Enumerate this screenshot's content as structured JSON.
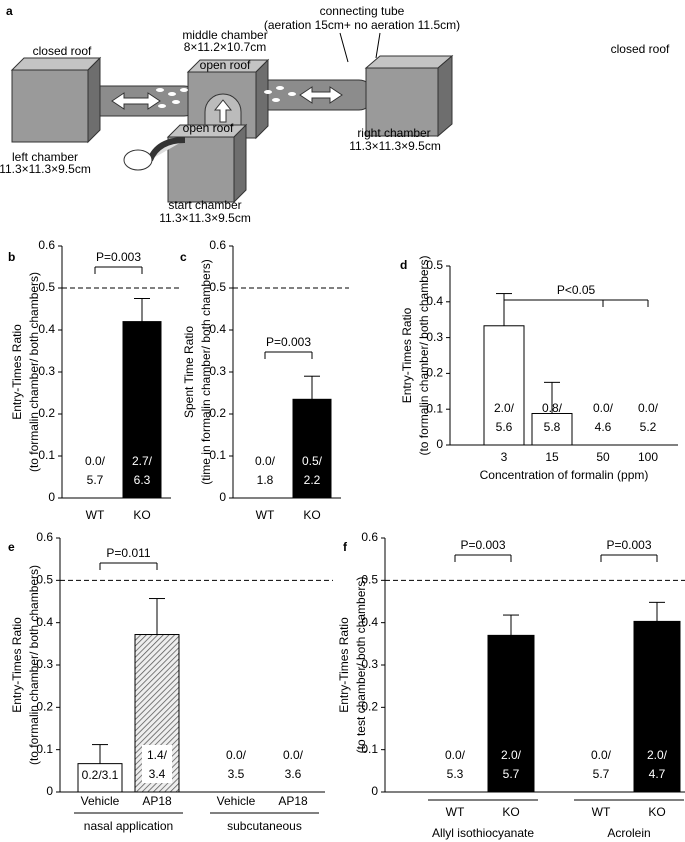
{
  "diagram": {
    "letter": "a",
    "labels": [
      "closed roof",
      "middle chamber",
      "8×11.2×10.7cm",
      "open roof",
      "connecting tube",
      "(aeration 15cm+ no aeration 11.5cm)",
      "closed roof",
      "left chamber",
      "11.3×11.3×9.5cm",
      "right chamber",
      "11.3×11.3×9.5cm",
      "open roof",
      "start chamber",
      "11.3×11.3×9.5cm"
    ]
  },
  "chart_data": [
    {
      "letter": "b",
      "type": "bar",
      "ylabel": "Entry-Times Ratio",
      "ylabel_sub": "(to formalin chamber/ both chambers)",
      "categories": [
        "WT",
        "KO"
      ],
      "values": [
        0,
        0.42
      ],
      "errors": [
        null,
        0.055
      ],
      "colors": [
        "#ffffff",
        "#000000"
      ],
      "annotations": [
        [
          "0.0/",
          "5.7"
        ],
        [
          "2.7/",
          "6.3"
        ]
      ],
      "reference_line": 0.5,
      "significance": [
        {
          "label": "P=0.003",
          "from": 0,
          "to": 1
        }
      ],
      "ylim": [
        0,
        0.6
      ],
      "yticks": [
        0,
        0.1,
        0.2,
        0.3,
        0.4,
        0.5,
        0.6
      ]
    },
    {
      "letter": "c",
      "type": "bar",
      "ylabel": "Spent Time Ratio",
      "ylabel_sub": "(time in formalin chamber/ both chambers)",
      "categories": [
        "WT",
        "KO"
      ],
      "values": [
        0,
        0.235
      ],
      "errors": [
        null,
        0.055
      ],
      "colors": [
        "#ffffff",
        "#000000"
      ],
      "annotations": [
        [
          "0.0/",
          "1.8"
        ],
        [
          "0.5/",
          "2.2"
        ]
      ],
      "reference_line": 0.5,
      "significance": [
        {
          "label": "P=0.003",
          "from": 0,
          "to": 1
        }
      ],
      "ylim": [
        0,
        0.6
      ],
      "yticks": [
        0,
        0.1,
        0.2,
        0.3,
        0.4,
        0.5,
        0.6
      ]
    },
    {
      "letter": "d",
      "type": "bar",
      "ylabel": "Entry-Times Ratio",
      "ylabel_sub": "(to formalin chamber/ both chambers)",
      "xlabel": "Concentration of formalin (ppm)",
      "categories": [
        "3",
        "15",
        "50",
        "100"
      ],
      "values": [
        0.333,
        0.088,
        0,
        0
      ],
      "errors": [
        0.09,
        0.087,
        null,
        null
      ],
      "colors": [
        "#ffffff",
        "#ffffff",
        "#ffffff",
        "#ffffff"
      ],
      "annotations": [
        [
          "2.0/",
          "5.6"
        ],
        [
          "0.8/",
          "5.8"
        ],
        [
          "0.0/",
          "4.6"
        ],
        [
          "0.0/",
          "5.2"
        ]
      ],
      "significance": [
        {
          "label": "P<0.05",
          "from": 0,
          "to": [
            2,
            3
          ]
        }
      ],
      "ylim": [
        0,
        0.5
      ],
      "yticks": [
        0,
        0.1,
        0.2,
        0.3,
        0.4,
        0.5
      ]
    },
    {
      "letter": "e",
      "type": "bar",
      "ylabel": "Entry-Times Ratio",
      "ylabel_sub": "(to formalin chamber/ both chambers)",
      "categories": [
        "Vehicle",
        "AP18",
        "Vehicle",
        "AP18"
      ],
      "groups": [
        "nasal application",
        "subcutaneous"
      ],
      "values": [
        0.067,
        0.372,
        0,
        0
      ],
      "errors": [
        0.045,
        0.085,
        null,
        null
      ],
      "colors": [
        "#ffffff",
        "#ffffff",
        "#ffffff",
        "#ffffff"
      ],
      "hatched": [
        false,
        true,
        false,
        false
      ],
      "annotations": [
        [
          "0.2/3.1"
        ],
        [
          "1.4/",
          "3.4"
        ],
        [
          "0.0/",
          "3.5"
        ],
        [
          "0.0/",
          "3.6"
        ]
      ],
      "reference_line": 0.5,
      "significance": [
        {
          "label": "P=0.011",
          "from": 0,
          "to": 1
        }
      ],
      "ylim": [
        0,
        0.6
      ],
      "yticks": [
        0,
        0.1,
        0.2,
        0.3,
        0.4,
        0.5,
        0.6
      ]
    },
    {
      "letter": "f",
      "type": "bar",
      "ylabel": "Entry-Times Ratio",
      "ylabel_sub": "(to test chamber/ both chambers)",
      "categories": [
        "WT",
        "KO",
        "WT",
        "KO"
      ],
      "groups": [
        "Allyl isothiocyanate",
        "Acrolein"
      ],
      "values": [
        0,
        0.37,
        0,
        0.403
      ],
      "errors": [
        null,
        0.048,
        null,
        0.045
      ],
      "colors": [
        "#ffffff",
        "#000000",
        "#ffffff",
        "#000000"
      ],
      "annotations": [
        [
          "0.0/",
          "5.3"
        ],
        [
          "2.0/",
          "5.7"
        ],
        [
          "0.0/",
          "5.7"
        ],
        [
          "2.0/",
          "4.7"
        ]
      ],
      "reference_line": 0.5,
      "significance": [
        {
          "label": "P=0.003",
          "from": 0,
          "to": 1
        },
        {
          "label": "P=0.003",
          "from": 2,
          "to": 3
        }
      ],
      "ylim": [
        0,
        0.6
      ],
      "yticks": [
        0,
        0.1,
        0.2,
        0.3,
        0.4,
        0.5,
        0.6
      ]
    }
  ]
}
